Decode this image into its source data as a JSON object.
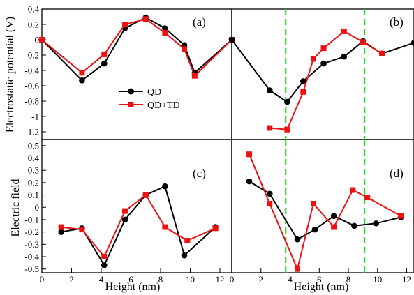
{
  "chart_data": [
    {
      "panel": "(a)",
      "type": "line",
      "ylabel": "Electrostatic potential (V)",
      "xlim": [
        0,
        12.8
      ],
      "ylim": [
        -1.3,
        0.4
      ],
      "x_ticks": [],
      "y_ticks": [
        "0.4",
        "0.2",
        "0",
        "-0.2",
        "-0.4",
        "-0.6",
        "-0.8",
        "-1",
        "-1.2"
      ],
      "y_tick_values": [
        0.4,
        0.2,
        0,
        -0.2,
        -0.4,
        -0.6,
        -0.8,
        -1,
        -1.2
      ],
      "legend": {
        "placement": "center-left",
        "entries": [
          "QD",
          "QD+TD"
        ]
      },
      "series": [
        {
          "name": "QD",
          "x": [
            0,
            2.7,
            4.2,
            5.6,
            7.0,
            8.3,
            9.6,
            10.3,
            12.8
          ],
          "y": [
            0.0,
            -0.53,
            -0.31,
            0.15,
            0.29,
            0.15,
            -0.07,
            -0.43,
            0.0
          ]
        },
        {
          "name": "QD+TD",
          "x": [
            0,
            2.7,
            4.2,
            5.6,
            7.0,
            8.3,
            9.6,
            10.3,
            12.8
          ],
          "y": [
            0.0,
            -0.43,
            -0.19,
            0.2,
            0.27,
            0.09,
            -0.12,
            -0.47,
            0.0
          ]
        }
      ]
    },
    {
      "panel": "(b)",
      "type": "line",
      "xlim": [
        0,
        12.5
      ],
      "ylim": [
        -1.3,
        0.4
      ],
      "x_ticks": [],
      "y_ticks": [],
      "vlines": [
        3.7,
        9.1
      ],
      "series": [
        {
          "name": "QD",
          "x": [
            0,
            2.6,
            3.8,
            4.9,
            6.3,
            7.7,
            9.0,
            10.3,
            12.5
          ],
          "y": [
            0.0,
            -0.66,
            -0.81,
            -0.54,
            -0.31,
            -0.22,
            -0.02,
            -0.18,
            -0.04
          ]
        },
        {
          "name": "QD+TD",
          "x": [
            2.6,
            3.8,
            4.9,
            5.6,
            6.3,
            7.7,
            9.0,
            10.3
          ],
          "y": [
            -1.15,
            -1.17,
            -0.68,
            -0.25,
            -0.11,
            0.11,
            -0.03,
            -0.18
          ]
        }
      ]
    },
    {
      "panel": "(c)",
      "type": "line",
      "ylabel": "Electric field",
      "xlabel": "Height (nm)",
      "xlim": [
        0,
        12.8
      ],
      "ylim": [
        -0.53,
        0.55
      ],
      "x_ticks": [
        "0",
        "2",
        "4",
        "6",
        "8",
        "10",
        "12"
      ],
      "x_tick_values": [
        0,
        2,
        4,
        6,
        8,
        10,
        12
      ],
      "y_ticks": [
        "0.5",
        "0.4",
        "0.3",
        "0.2",
        "0.1",
        "0",
        "-0.1",
        "-0.2",
        "-0.3",
        "-0.4",
        "-0.5"
      ],
      "y_tick_values": [
        0.5,
        0.4,
        0.3,
        0.2,
        0.1,
        0,
        -0.1,
        -0.2,
        -0.3,
        -0.4,
        -0.5
      ],
      "series": [
        {
          "name": "QD",
          "x": [
            1.3,
            2.7,
            4.2,
            5.6,
            7.0,
            8.3,
            9.6,
            11.7
          ],
          "y": [
            -0.2,
            -0.17,
            -0.47,
            -0.1,
            0.1,
            0.17,
            -0.39,
            -0.16
          ]
        },
        {
          "name": "QD+TD",
          "x": [
            1.3,
            2.7,
            4.2,
            5.6,
            7.0,
            8.3,
            9.8,
            11.7
          ],
          "y": [
            -0.16,
            -0.18,
            -0.4,
            -0.03,
            0.1,
            -0.16,
            -0.27,
            -0.17
          ]
        }
      ]
    },
    {
      "panel": "(d)",
      "type": "line",
      "xlabel": "Height (nm)",
      "xlim": [
        0,
        12.5
      ],
      "ylim": [
        -0.53,
        0.55
      ],
      "x_ticks": [
        "0",
        "2",
        "4",
        "6",
        "8",
        "10",
        "12"
      ],
      "x_tick_values": [
        0,
        2,
        4,
        6,
        8,
        10,
        12
      ],
      "y_ticks": [],
      "vlines": [
        3.7,
        9.1
      ],
      "series": [
        {
          "name": "QD",
          "x": [
            1.2,
            2.6,
            4.5,
            5.7,
            7.0,
            8.4,
            9.9,
            11.6
          ],
          "y": [
            0.21,
            0.11,
            -0.26,
            -0.18,
            -0.07,
            -0.15,
            -0.13,
            -0.08
          ]
        },
        {
          "name": "QD+TD",
          "x": [
            1.2,
            2.6,
            4.5,
            5.6,
            7.0,
            8.3,
            9.3,
            11.6
          ],
          "y": [
            0.43,
            0.03,
            -0.5,
            0.03,
            -0.16,
            0.14,
            0.08,
            -0.07
          ]
        }
      ]
    }
  ],
  "colors": {
    "qd": "#000000",
    "qdtd": "#ee1111",
    "vline": "#22dd22",
    "axis": "#000000"
  }
}
